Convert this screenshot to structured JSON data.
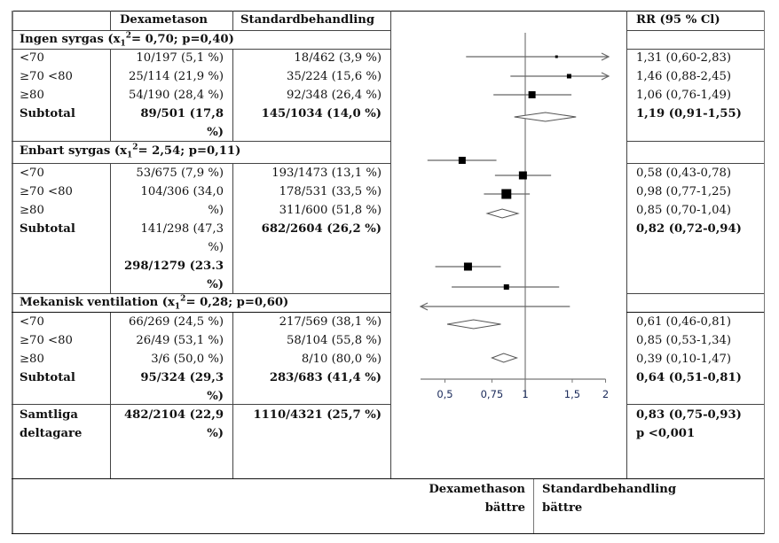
{
  "table": {
    "headers": {
      "group": "",
      "dexa": "Dexametason",
      "std": "Standardbehandling",
      "rr": "RR (95 % Cl)"
    },
    "sections": [
      {
        "title_prefix": "Ingen syrgas (x",
        "title_sub": "1",
        "title_sup": "2",
        "title_suffix": "= 0,70; p=0,40)",
        "rows": [
          {
            "label": "<70",
            "dexa": "10/197 (5,1 %)",
            "std": "18/462 (3,9 %)",
            "rr": "1,31 (0,60-2,83)"
          },
          {
            "label": "≥70 <80",
            "dexa": "25/114 (21,9 %)",
            "std": "35/224 (15,6 %)",
            "rr": "1,46 (0,88-2,45)"
          },
          {
            "label": "≥80",
            "dexa": "54/190 (28,4 %)",
            "std": "92/348 (26,4 %)",
            "rr": "1,06 (0,76-1,49)"
          }
        ],
        "subtotal": {
          "label": "Subtotal",
          "dexa_l1": "89/501 (17,8",
          "dexa_l2": "%)",
          "std": "145/1034 (14,0 %)",
          "rr": "1,19 (0,91-1,55)"
        }
      },
      {
        "title_prefix": "Enbart syrgas (x",
        "title_sub": "1",
        "title_sup": "2",
        "title_suffix": "= 2,54; p=0,11)",
        "rows": [
          {
            "label": "<70",
            "dexa": "53/675 (7,9 %)",
            "std": "193/1473 (13,1 %)",
            "rr": "0,58 (0,43-0,78)"
          },
          {
            "label": "≥70 <80",
            "dexa": "104/306 (34,0",
            "std": "178/531 (33,5 %)",
            "rr": "0,98 (0,77-1,25)"
          },
          {
            "label": "≥80",
            "dexa": "%)",
            "std": "311/600 (51,8 %)",
            "rr": "0,85 (0,70-1,04)"
          }
        ],
        "subtotal": {
          "label": "Subtotal",
          "dexa_l1": "141/298 (47,3",
          "dexa_l2": "%)",
          "dexa_l3": "298/1279 (23.3",
          "dexa_l4": "%)",
          "std": "682/2604 (26,2 %)",
          "rr": "0,82 (0,72-0,94)"
        }
      },
      {
        "title_prefix": "Mekanisk ventilation (x",
        "title_sub": "1",
        "title_sup": "2",
        "title_suffix": "= 0,28; p=0,60)",
        "rows": [
          {
            "label": "<70",
            "dexa": "66/269 (24,5 %)",
            "std": "217/569 (38,1 %)",
            "rr": "0,61 (0,46-0,81)"
          },
          {
            "label": "≥70 <80",
            "dexa": "26/49 (53,1 %)",
            "std": "58/104 (55,8 %)",
            "rr": "0,85 (0,53-1,34)"
          },
          {
            "label": "≥80",
            "dexa": "3/6 (50,0 %)",
            "std": "8/10 (80,0 %)",
            "rr": "0,39 (0,10-1,47)"
          }
        ],
        "subtotal": {
          "label": "Subtotal",
          "dexa_l1": "95/324 (29,3",
          "dexa_l2": "%)",
          "std": "283/683 (41,4 %)",
          "rr": "0,64 (0,51-0,81)"
        }
      }
    ],
    "overall": {
      "label_l1": "Samtliga",
      "label_l2": "deltagare",
      "dexa_l1": "482/2104 (22,9",
      "dexa_l2": "%)",
      "std": "1110/4321 (25,7 %)",
      "rr": "0,83 (0,75-0,93)",
      "p": "p <0,001"
    },
    "footer": {
      "left_l1": "Dexamethason",
      "left_l2": "bättre",
      "right_l1": "Standardbehandling",
      "right_l2": "bättre"
    }
  },
  "chart_data": {
    "type": "forest",
    "scale": "log",
    "xlim": [
      0.4,
      2
    ],
    "reference_line": 1,
    "x_ticks": [
      0.5,
      0.75,
      1,
      1.5,
      2
    ],
    "x_tick_labels": [
      "0,5",
      "0,75",
      "1",
      "1,5",
      "2"
    ],
    "xlabel_left": "Dexamethason bättre",
    "xlabel_right": "Standardbehandling bättre",
    "series": [
      {
        "name": "Ingen syrgas <70",
        "rr": 1.31,
        "lo": 0.6,
        "hi": 2.83,
        "kind": "square"
      },
      {
        "name": "Ingen syrgas ≥70 <80",
        "rr": 1.46,
        "lo": 0.88,
        "hi": 2.45,
        "kind": "square"
      },
      {
        "name": "Ingen syrgas ≥80",
        "rr": 1.06,
        "lo": 0.76,
        "hi": 1.49,
        "kind": "square"
      },
      {
        "name": "Ingen syrgas Subtotal",
        "rr": 1.19,
        "lo": 0.91,
        "hi": 1.55,
        "kind": "diamond"
      },
      {
        "name": "Enbart syrgas <70",
        "rr": 0.58,
        "lo": 0.43,
        "hi": 0.78,
        "kind": "square"
      },
      {
        "name": "Enbart syrgas ≥70 <80",
        "rr": 0.98,
        "lo": 0.77,
        "hi": 1.25,
        "kind": "square"
      },
      {
        "name": "Enbart syrgas ≥80",
        "rr": 0.85,
        "lo": 0.7,
        "hi": 1.04,
        "kind": "square"
      },
      {
        "name": "Enbart syrgas Subtotal",
        "rr": 0.82,
        "lo": 0.72,
        "hi": 0.94,
        "kind": "diamond"
      },
      {
        "name": "Mekanisk ventilation <70",
        "rr": 0.61,
        "lo": 0.46,
        "hi": 0.81,
        "kind": "square"
      },
      {
        "name": "Mekanisk ventilation ≥70 <80",
        "rr": 0.85,
        "lo": 0.53,
        "hi": 1.34,
        "kind": "square"
      },
      {
        "name": "Mekanisk ventilation ≥80",
        "rr": 0.39,
        "lo": 0.1,
        "hi": 1.47,
        "kind": "square"
      },
      {
        "name": "Mekanisk ventilation Subtotal",
        "rr": 0.64,
        "lo": 0.51,
        "hi": 0.81,
        "kind": "diamond"
      },
      {
        "name": "Samtliga deltagare",
        "rr": 0.83,
        "lo": 0.75,
        "hi": 0.93,
        "kind": "diamond"
      }
    ]
  }
}
